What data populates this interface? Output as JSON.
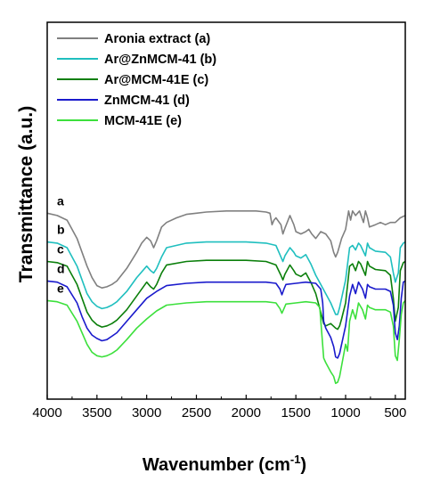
{
  "chart_data": {
    "type": "line",
    "xlabel": "Wavenumber (cm",
    "xlabel_sup": "-1",
    "xlabel_close": ")",
    "ylabel": "Transmittance (a.u.)",
    "xlim": [
      4000,
      400
    ],
    "x_reversed": true,
    "xticks": [
      4000,
      3500,
      3000,
      2500,
      2000,
      1500,
      1000,
      500
    ],
    "yticks_shown": false,
    "legend_position": "top-left",
    "series": [
      {
        "name": "Aronia extract (a)",
        "curve_label": "a",
        "color": "#808080",
        "x": [
          4000,
          3900,
          3800,
          3700,
          3650,
          3600,
          3550,
          3500,
          3450,
          3400,
          3350,
          3300,
          3200,
          3100,
          3050,
          3000,
          2960,
          2930,
          2900,
          2850,
          2800,
          2700,
          2600,
          2500,
          2400,
          2200,
          2000,
          1900,
          1800,
          1760,
          1740,
          1720,
          1700,
          1650,
          1630,
          1610,
          1560,
          1520,
          1500,
          1450,
          1400,
          1370,
          1340,
          1300,
          1250,
          1200,
          1150,
          1120,
          1100,
          1080,
          1060,
          1040,
          1000,
          970,
          950,
          930,
          900,
          860,
          820,
          800,
          780,
          760,
          700,
          650,
          600,
          550,
          500,
          450,
          400
        ],
        "y": [
          0.77,
          0.76,
          0.74,
          0.66,
          0.6,
          0.54,
          0.49,
          0.455,
          0.445,
          0.45,
          0.46,
          0.475,
          0.53,
          0.6,
          0.64,
          0.665,
          0.65,
          0.62,
          0.65,
          0.71,
          0.73,
          0.75,
          0.765,
          0.77,
          0.775,
          0.78,
          0.78,
          0.78,
          0.775,
          0.77,
          0.72,
          0.74,
          0.75,
          0.72,
          0.68,
          0.705,
          0.76,
          0.72,
          0.69,
          0.68,
          0.69,
          0.7,
          0.68,
          0.66,
          0.69,
          0.68,
          0.65,
          0.6,
          0.58,
          0.6,
          0.63,
          0.66,
          0.7,
          0.78,
          0.74,
          0.78,
          0.76,
          0.78,
          0.73,
          0.78,
          0.75,
          0.71,
          0.72,
          0.73,
          0.72,
          0.73,
          0.73,
          0.75,
          0.76
        ]
      },
      {
        "name": "Ar@ZnMCM-41 (b)",
        "curve_label": "b",
        "color": "#1fbfbf",
        "x": [
          4000,
          3900,
          3800,
          3700,
          3650,
          3600,
          3550,
          3500,
          3450,
          3400,
          3350,
          3300,
          3200,
          3100,
          3000,
          2960,
          2930,
          2900,
          2850,
          2800,
          2600,
          2400,
          2000,
          1800,
          1700,
          1650,
          1630,
          1610,
          1560,
          1520,
          1500,
          1450,
          1400,
          1350,
          1300,
          1250,
          1200,
          1150,
          1100,
          1080,
          1060,
          1040,
          1000,
          960,
          930,
          900,
          870,
          850,
          800,
          780,
          760,
          700,
          600,
          550,
          520,
          500,
          470,
          450,
          420,
          400
        ],
        "y": [
          0.645,
          0.64,
          0.62,
          0.54,
          0.48,
          0.42,
          0.385,
          0.365,
          0.355,
          0.36,
          0.37,
          0.385,
          0.43,
          0.49,
          0.54,
          0.52,
          0.51,
          0.53,
          0.58,
          0.62,
          0.64,
          0.645,
          0.645,
          0.64,
          0.63,
          0.58,
          0.56,
          0.585,
          0.62,
          0.6,
          0.585,
          0.575,
          0.59,
          0.55,
          0.5,
          0.46,
          0.42,
          0.38,
          0.33,
          0.33,
          0.36,
          0.4,
          0.48,
          0.62,
          0.63,
          0.61,
          0.64,
          0.63,
          0.585,
          0.64,
          0.62,
          0.605,
          0.6,
          0.58,
          0.51,
          0.47,
          0.51,
          0.62,
          0.64,
          0.645
        ]
      },
      {
        "name": "Ar@MCM-41E (c)",
        "curve_label": "c",
        "color": "#0b7f0b",
        "x": [
          4000,
          3900,
          3800,
          3700,
          3650,
          3600,
          3550,
          3500,
          3450,
          3400,
          3350,
          3300,
          3200,
          3100,
          3000,
          2960,
          2930,
          2900,
          2850,
          2800,
          2600,
          2400,
          2000,
          1800,
          1700,
          1650,
          1630,
          1610,
          1560,
          1520,
          1500,
          1450,
          1400,
          1350,
          1300,
          1250,
          1220,
          1200,
          1150,
          1100,
          1080,
          1060,
          1040,
          1000,
          960,
          930,
          900,
          870,
          850,
          800,
          780,
          760,
          700,
          600,
          550,
          520,
          500,
          470,
          450,
          420,
          400
        ],
        "y": [
          0.56,
          0.555,
          0.54,
          0.46,
          0.4,
          0.34,
          0.305,
          0.285,
          0.275,
          0.28,
          0.29,
          0.305,
          0.35,
          0.41,
          0.47,
          0.45,
          0.44,
          0.46,
          0.51,
          0.545,
          0.56,
          0.565,
          0.565,
          0.56,
          0.545,
          0.5,
          0.48,
          0.505,
          0.545,
          0.52,
          0.505,
          0.495,
          0.51,
          0.47,
          0.42,
          0.34,
          0.29,
          0.28,
          0.29,
          0.27,
          0.265,
          0.28,
          0.31,
          0.38,
          0.54,
          0.55,
          0.52,
          0.56,
          0.55,
          0.5,
          0.56,
          0.54,
          0.525,
          0.52,
          0.5,
          0.4,
          0.3,
          0.36,
          0.52,
          0.555,
          0.56
        ]
      },
      {
        "name": "ZnMCM-41 (d)",
        "curve_label": "d",
        "color": "#1a1acc",
        "x": [
          4000,
          3900,
          3800,
          3700,
          3650,
          3600,
          3550,
          3500,
          3450,
          3400,
          3350,
          3300,
          3200,
          3100,
          3000,
          2900,
          2800,
          2600,
          2400,
          2000,
          1800,
          1700,
          1660,
          1640,
          1620,
          1600,
          1500,
          1400,
          1300,
          1250,
          1230,
          1220,
          1200,
          1150,
          1120,
          1100,
          1080,
          1060,
          1000,
          960,
          930,
          900,
          870,
          830,
          800,
          780,
          760,
          700,
          600,
          550,
          520,
          500,
          480,
          460,
          440,
          420,
          400
        ],
        "y": [
          0.475,
          0.47,
          0.45,
          0.38,
          0.32,
          0.27,
          0.24,
          0.225,
          0.215,
          0.22,
          0.235,
          0.25,
          0.3,
          0.35,
          0.4,
          0.43,
          0.455,
          0.465,
          0.47,
          0.47,
          0.47,
          0.465,
          0.44,
          0.415,
          0.44,
          0.46,
          0.465,
          0.47,
          0.465,
          0.44,
          0.38,
          0.3,
          0.27,
          0.23,
          0.19,
          0.145,
          0.14,
          0.16,
          0.28,
          0.41,
          0.46,
          0.42,
          0.47,
          0.44,
          0.4,
          0.46,
          0.45,
          0.44,
          0.44,
          0.43,
          0.37,
          0.25,
          0.22,
          0.28,
          0.4,
          0.47,
          0.475
        ]
      },
      {
        "name": "MCM-41E (e)",
        "curve_label": "e",
        "color": "#3ce03c",
        "x": [
          4000,
          3900,
          3800,
          3700,
          3650,
          3600,
          3550,
          3500,
          3450,
          3400,
          3350,
          3300,
          3200,
          3100,
          3000,
          2900,
          2800,
          2600,
          2400,
          2000,
          1800,
          1700,
          1660,
          1640,
          1620,
          1600,
          1500,
          1400,
          1300,
          1260,
          1240,
          1220,
          1200,
          1150,
          1120,
          1100,
          1080,
          1060,
          1000,
          980,
          960,
          930,
          900,
          870,
          830,
          800,
          780,
          760,
          700,
          600,
          550,
          520,
          500,
          480,
          460,
          440,
          420,
          400
        ],
        "y": [
          0.39,
          0.385,
          0.37,
          0.3,
          0.25,
          0.2,
          0.165,
          0.15,
          0.145,
          0.15,
          0.16,
          0.175,
          0.22,
          0.27,
          0.31,
          0.345,
          0.37,
          0.38,
          0.385,
          0.385,
          0.385,
          0.38,
          0.355,
          0.335,
          0.355,
          0.375,
          0.38,
          0.385,
          0.38,
          0.36,
          0.25,
          0.14,
          0.12,
          0.08,
          0.06,
          0.03,
          0.035,
          0.06,
          0.2,
          0.17,
          0.3,
          0.35,
          0.31,
          0.38,
          0.35,
          0.31,
          0.37,
          0.36,
          0.35,
          0.35,
          0.34,
          0.28,
          0.15,
          0.13,
          0.22,
          0.33,
          0.38,
          0.39
        ]
      }
    ]
  }
}
